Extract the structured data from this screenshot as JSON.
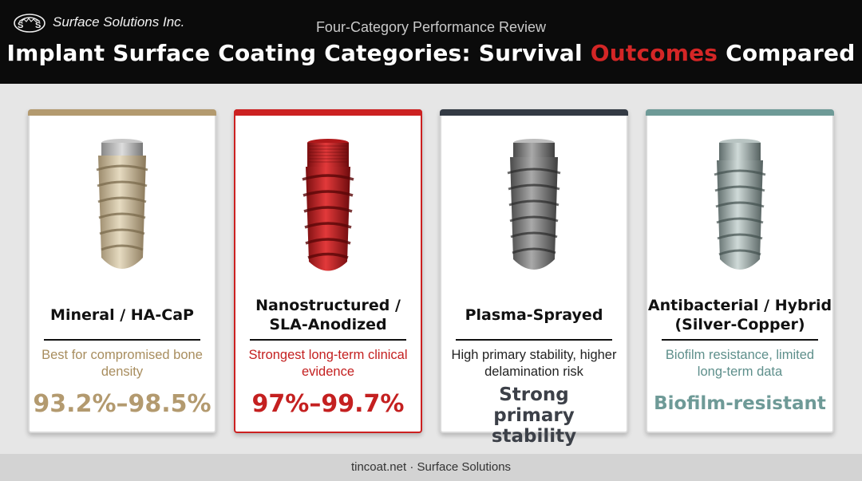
{
  "brand": {
    "name": "Surface Solutions Inc."
  },
  "header": {
    "subtitle": "Four-Category Performance Review",
    "title_part1": "Implant Surface Coating Categories: Survival ",
    "title_accent": "Outcomes",
    "title_part2": " Compared"
  },
  "colors": {
    "mineral": "#b39a6f",
    "nano": "#cc2121",
    "plasma": "#333a44",
    "antibac": "#6e9a97"
  },
  "cards": [
    {
      "name": "Mineral / HA-CaP",
      "description": "Best for compromised bone density",
      "metric": "93.2%–98.5%",
      "icon": "implant-mineral-icon"
    },
    {
      "name": "Nanostructured / SLA-Anodized",
      "description": "Strongest long-term clinical evidence",
      "metric": "97%–99.7%",
      "icon": "implant-red-icon"
    },
    {
      "name": "Plasma-Sprayed",
      "description": "High primary stability, higher delamination risk",
      "metric": "Strong primary stability",
      "icon": "implant-gray-icon"
    },
    {
      "name": "Antibacterial / Hybrid (Silver-Copper)",
      "description": "Biofilm resistance, limited long-term data",
      "metric": "Biofilm-resistant",
      "icon": "implant-silver-icon"
    }
  ],
  "footer": {
    "text": "tincoat.net · Surface Solutions"
  }
}
